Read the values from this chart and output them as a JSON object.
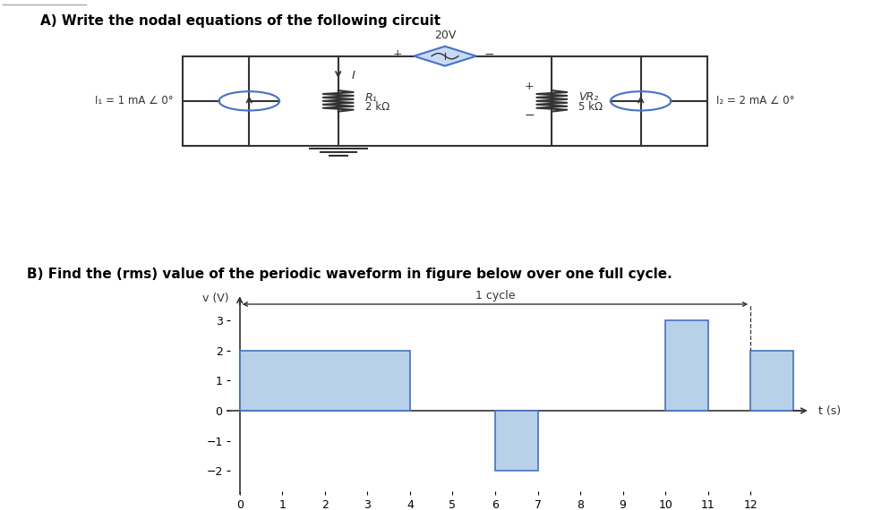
{
  "title_a": "A) Write the nodal equations of the following circuit",
  "title_b": "B) Find the (rms) value of the periodic waveform in figure below over one full cycle.",
  "circuit": {
    "voltage_source": "20V",
    "R1_label": "R₁",
    "R1_val": "2 kΩ",
    "R2_label": "VR₂",
    "R2_val": "5 kΩ",
    "I1_label": "I₁ = 1 mA ∠ 0°",
    "I2_label": "I₂ = 2 mA ∠ 0°",
    "current_label": "I"
  },
  "waveform": {
    "segments": [
      {
        "t_start": 0,
        "t_end": 4,
        "v": 2
      },
      {
        "t_start": 4,
        "t_end": 6,
        "v": 0
      },
      {
        "t_start": 6,
        "t_end": 7,
        "v": -2
      },
      {
        "t_start": 7,
        "t_end": 10,
        "v": 0
      },
      {
        "t_start": 10,
        "t_end": 11,
        "v": 3
      },
      {
        "t_start": 11,
        "t_end": 12,
        "v": 0
      },
      {
        "t_start": 12,
        "t_end": 13,
        "v": 2
      }
    ],
    "xlim": [
      -0.3,
      13.5
    ],
    "ylim": [
      -2.8,
      4.0
    ],
    "xticks": [
      0,
      1,
      2,
      3,
      4,
      5,
      6,
      7,
      8,
      9,
      10,
      11,
      12
    ],
    "yticks": [
      -2,
      -1,
      0,
      1,
      2,
      3
    ],
    "xlabel": "t (s)",
    "ylabel": "v (V)",
    "cycle_start": 0,
    "cycle_end": 12,
    "bar_color": "#b8d0e8",
    "bar_edge_color": "#4472c4"
  },
  "bg_color": "#ffffff",
  "text_color": "#000000",
  "line_color": "#333333",
  "circuit_color": "#4472c4",
  "sep_line_color": "#aaaaaa"
}
